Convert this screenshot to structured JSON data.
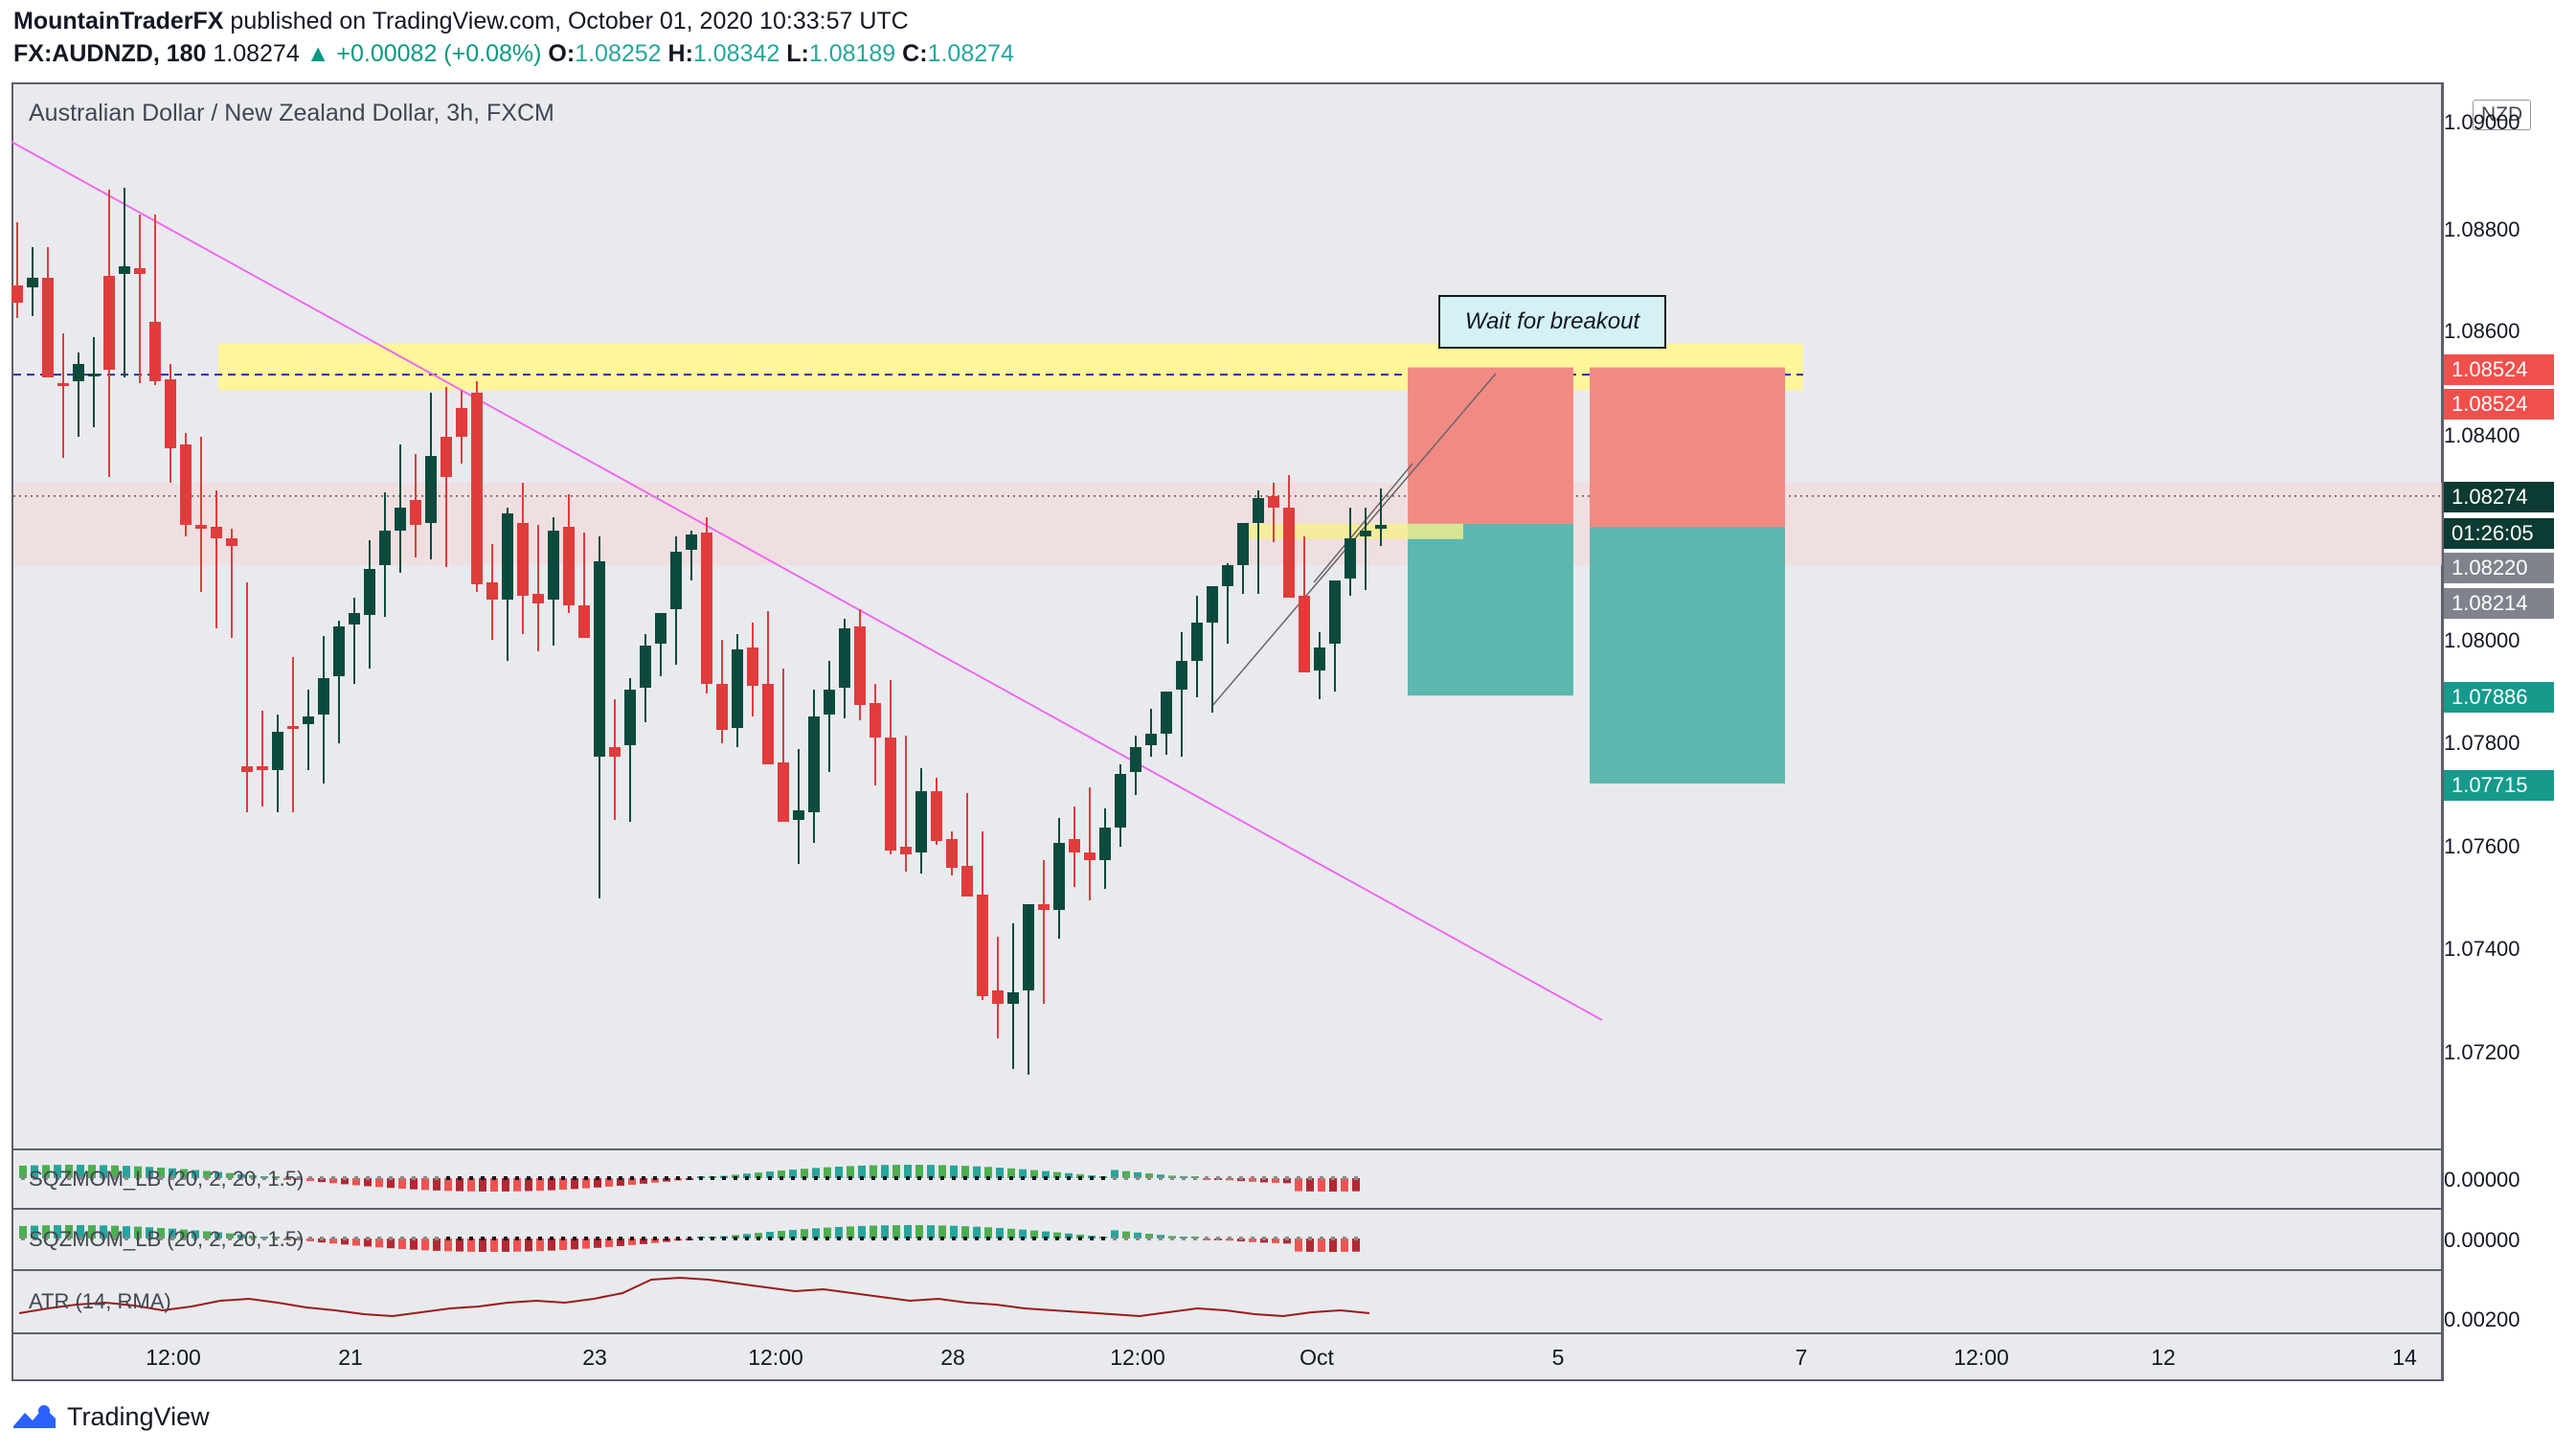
{
  "header": {
    "author": "MountainTraderFX",
    "published_text": "published on TradingView.com, October 01, 2020 10:33:57 UTC",
    "symbol": "FX:AUDNZD, 180",
    "last": "1.08274",
    "change": "▲ +0.00082 (+0.08%)",
    "o_label": "O:",
    "o_value": "1.08252",
    "h_label": "H:",
    "h_value": "1.08342",
    "l_label": "L:",
    "l_value": "1.08189",
    "c_label": "C:",
    "c_value": "1.08274"
  },
  "chart": {
    "title": "Australian Dollar / New Zealand Dollar, 3h, FXCM",
    "currency_button": "NZD",
    "annotation": "Wait for breakout",
    "price_axis": [
      "1.09000",
      "1.08800",
      "1.08600",
      "1.08400",
      "1.08000",
      "1.07800",
      "1.07600",
      "1.07400",
      "1.07200"
    ],
    "price_tags": {
      "stop_1": "1.08524",
      "stop_2": "1.08524",
      "last": "1.08274",
      "countdown": "01:26:05",
      "entry_1": "1.08220",
      "entry_2": "1.08214",
      "target_1": "1.07886",
      "target_2": "1.07715"
    },
    "x_axis": [
      "12:00",
      "21",
      "23",
      "12:00",
      "28",
      "12:00",
      "Oct",
      "5",
      "7",
      "12:00",
      "12",
      "14"
    ],
    "colors": {
      "bull": "#0c4a3e",
      "bear": "#e03c3c",
      "resistance": "#fff59a",
      "trendline": "#ee6af0",
      "loss": "#f28a84",
      "profit": "#5cb8af"
    }
  },
  "chart_data": {
    "type": "candlestick",
    "title": "Australian Dollar / New Zealand Dollar, 3h, FXCM",
    "ylim": [
      1.07,
      1.0915
    ],
    "x_labels": [
      "12:00",
      "21",
      "23",
      "12:00",
      "28",
      "12:00",
      "Oct",
      "5",
      "7",
      "12:00",
      "12",
      "14"
    ],
    "resistance_level": 1.0851,
    "last_price": 1.08274,
    "trade_boxes": [
      {
        "entry": 1.0822,
        "stop": 1.08524,
        "target": 1.07886
      },
      {
        "entry": 1.08214,
        "stop": 1.08524,
        "target": 1.07715
      }
    ],
    "indicators": [
      {
        "name": "SQZMOM_LB (20, 2, 20, 1.5)",
        "value": "0.00000"
      },
      {
        "name": "SQZMOM_LB (20, 2, 20, 1.5)",
        "value": "0.00000"
      },
      {
        "name": "ATR (14, RMA)",
        "value": "0.00200"
      }
    ]
  },
  "branding": {
    "logo_text": "TradingView"
  }
}
